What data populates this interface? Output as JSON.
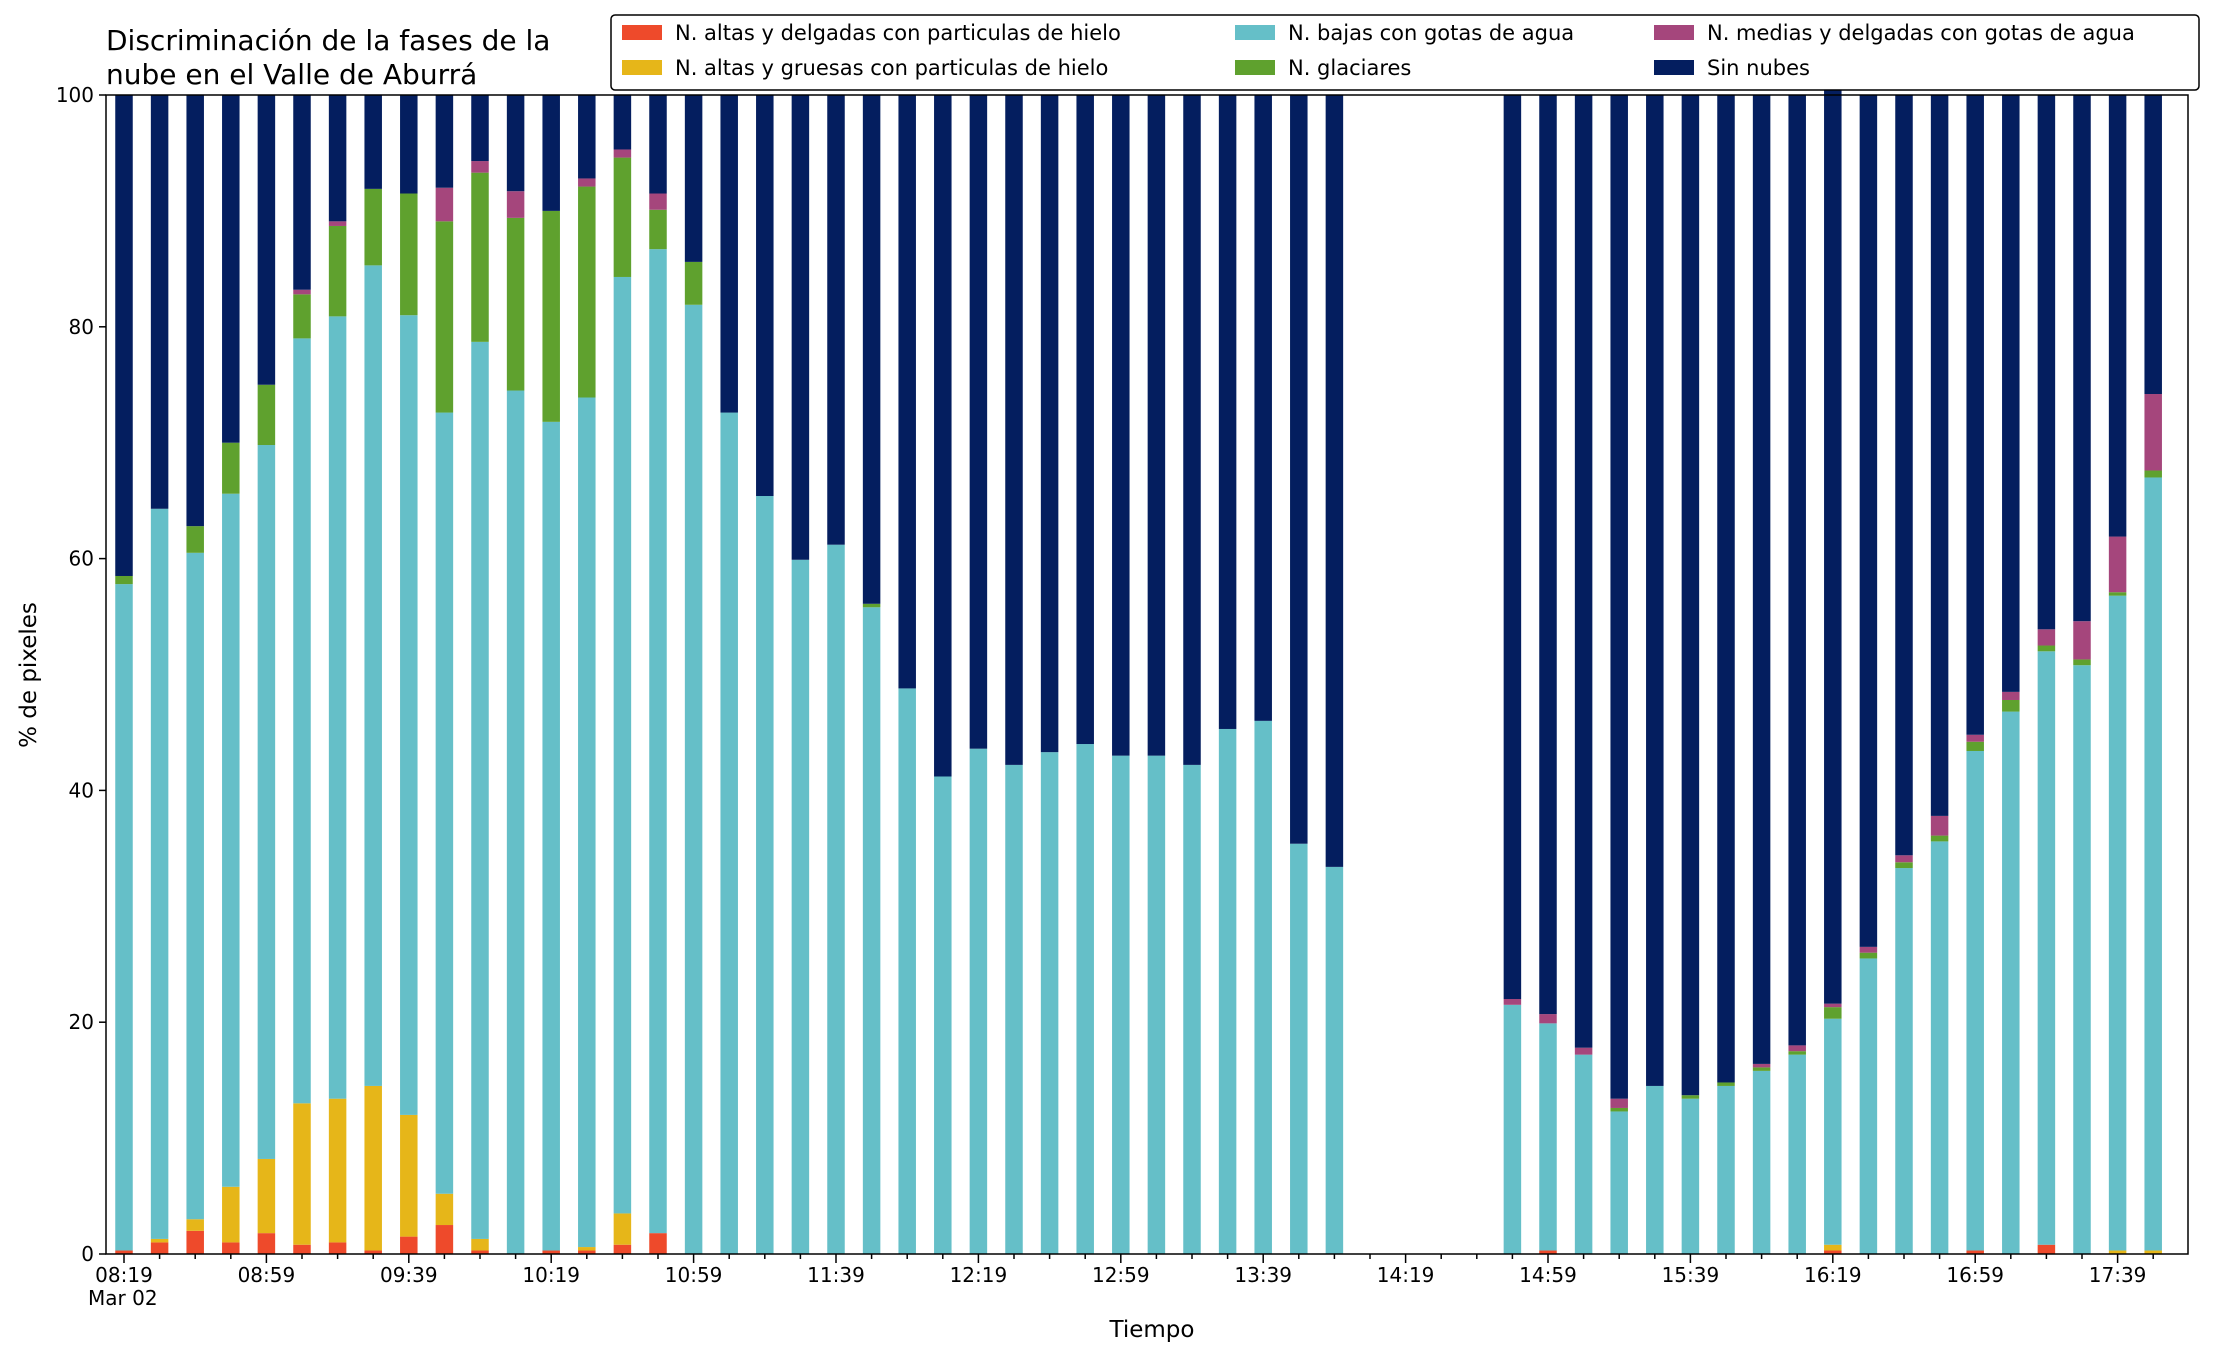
{
  "chart_data": {
    "type": "bar",
    "stacked": true,
    "title_lines": [
      "Discriminación de la fases de la",
      "nube en el Valle de Aburrá"
    ],
    "xlabel": "Tiempo",
    "ylabel": "% de pixeles",
    "ylim": [
      0,
      100
    ],
    "yticks": [
      0,
      20,
      40,
      60,
      80,
      100
    ],
    "date_label": "Mar 02",
    "xtick_labels": [
      "08:19",
      "08:59",
      "09:39",
      "10:19",
      "10:59",
      "11:39",
      "12:19",
      "12:59",
      "13:39",
      "14:19",
      "14:59",
      "15:39",
      "16:19",
      "16:59",
      "17:39"
    ],
    "grid": false,
    "legend_position": "top-right",
    "interval_minutes": 10,
    "x": [
      "08:19",
      "08:29",
      "08:39",
      "08:49",
      "08:59",
      "09:09",
      "09:19",
      "09:29",
      "09:39",
      "09:49",
      "09:59",
      "10:09",
      "10:19",
      "10:29",
      "10:39",
      "10:49",
      "10:59",
      "11:09",
      "11:19",
      "11:29",
      "11:39",
      "11:49",
      "11:59",
      "12:09",
      "12:19",
      "12:29",
      "12:39",
      "12:49",
      "12:59",
      "13:09",
      "13:19",
      "13:29",
      "13:39",
      "13:49",
      "13:59",
      "14:09",
      "14:19",
      "14:29",
      "14:39",
      "14:49",
      "14:59",
      "15:09",
      "15:19",
      "15:29",
      "15:39",
      "15:49",
      "15:59",
      "16:09",
      "16:19",
      "16:29",
      "16:39",
      "16:49",
      "16:59",
      "17:09",
      "17:19",
      "17:29",
      "17:39",
      "17:49"
    ],
    "series": [
      {
        "name": "N. altas y delgadas con particulas de hielo",
        "color": "#ee4a2b",
        "values": [
          0.3,
          1.0,
          2.0,
          1.0,
          1.8,
          0.8,
          1.0,
          0.3,
          1.5,
          2.5,
          0.3,
          0,
          0.3,
          0.3,
          0.8,
          1.8,
          0,
          0,
          0,
          0,
          0,
          0,
          0,
          0,
          0,
          0,
          0,
          0,
          0,
          0,
          0,
          0,
          0,
          0,
          0,
          null,
          null,
          null,
          null,
          0,
          0.3,
          0,
          0,
          0,
          0,
          0,
          0,
          0,
          0.3,
          0,
          0,
          0,
          0.3,
          0,
          0.8,
          0,
          0,
          0
        ]
      },
      {
        "name": "N. altas y gruesas con particulas de hielo",
        "color": "#e6b619",
        "values": [
          0,
          0.3,
          1.0,
          4.8,
          6.4,
          12.2,
          12.4,
          14.2,
          10.5,
          2.7,
          1.0,
          0,
          0,
          0.3,
          2.7,
          0,
          0,
          0,
          0,
          0,
          0,
          0,
          0,
          0,
          0,
          0,
          0,
          0,
          0,
          0,
          0,
          0,
          0,
          0,
          0,
          null,
          null,
          null,
          null,
          0,
          0,
          0,
          0,
          0,
          0,
          0,
          0,
          0,
          0.5,
          0,
          0,
          0,
          0,
          0,
          0,
          0,
          0.3,
          0.3
        ]
      },
      {
        "name": "N. bajas con gotas de agua",
        "color": "#65bfc8",
        "values": [
          57.5,
          63.0,
          57.5,
          59.8,
          61.6,
          66.0,
          67.5,
          70.8,
          69.0,
          67.4,
          77.4,
          74.5,
          71.5,
          73.3,
          80.8,
          84.9,
          81.9,
          72.6,
          65.4,
          59.9,
          61.2,
          55.8,
          48.8,
          41.2,
          43.6,
          42.2,
          43.3,
          44.0,
          43.0,
          43.0,
          42.2,
          45.3,
          46.0,
          35.4,
          33.4,
          null,
          null,
          null,
          null,
          21.5,
          19.6,
          17.2,
          12.3,
          14.5,
          13.4,
          14.5,
          15.8,
          17.2,
          19.5,
          25.5,
          33.3,
          35.6,
          43.1,
          46.8,
          51.2,
          50.8,
          56.5,
          66.7
        ]
      },
      {
        "name": "N. glaciares",
        "color": "#5fa12e",
        "values": [
          0.7,
          0,
          2.3,
          4.4,
          5.2,
          3.8,
          7.8,
          6.6,
          10.5,
          16.5,
          14.6,
          14.9,
          18.2,
          18.2,
          10.3,
          3.4,
          3.7,
          0,
          0,
          0,
          0,
          0.3,
          0,
          0,
          0,
          0,
          0,
          0,
          0,
          0,
          0,
          0,
          0,
          0,
          0,
          null,
          null,
          null,
          null,
          0,
          0,
          0,
          0.3,
          0,
          0.3,
          0.3,
          0.3,
          0.3,
          1.0,
          0.5,
          0.5,
          0.5,
          0.8,
          1.0,
          0.5,
          0.5,
          0.3,
          0.6
        ]
      },
      {
        "name": "N. medias y delgadas con gotas de agua",
        "color": "#a5467c",
        "values": [
          0,
          0,
          0,
          0,
          0,
          0.4,
          0.4,
          0,
          0,
          2.9,
          1.0,
          2.3,
          0,
          0.7,
          0.7,
          1.4,
          0,
          0,
          0,
          0,
          0,
          0,
          0,
          0,
          0,
          0,
          0,
          0,
          0,
          0,
          0,
          0,
          0,
          0,
          0,
          null,
          null,
          null,
          null,
          0.5,
          0.8,
          0.6,
          0.8,
          0,
          0,
          0,
          0.3,
          0.5,
          0.3,
          0.5,
          0.6,
          1.7,
          0.6,
          0.7,
          1.4,
          3.3,
          4.8,
          6.6
        ]
      },
      {
        "name": "Sin nubes",
        "color": "#041e5f",
        "values": [
          41.5,
          35.7,
          37.2,
          30.0,
          25.0,
          16.8,
          10.9,
          8.1,
          8.5,
          8.0,
          5.7,
          8.3,
          10.0,
          7.2,
          4.7,
          8.5,
          14.4,
          27.4,
          34.6,
          40.1,
          38.8,
          43.9,
          51.2,
          58.8,
          56.4,
          57.8,
          56.7,
          56.0,
          57.0,
          57.0,
          57.8,
          54.7,
          54.0,
          64.6,
          66.6,
          null,
          null,
          null,
          null,
          78.0,
          79.3,
          82.2,
          86.6,
          85.5,
          86.3,
          85.2,
          83.6,
          82.0,
          78.9,
          73.5,
          65.6,
          62.2,
          55.2,
          51.5,
          46.1,
          45.4,
          38.1,
          25.8
        ]
      }
    ]
  }
}
